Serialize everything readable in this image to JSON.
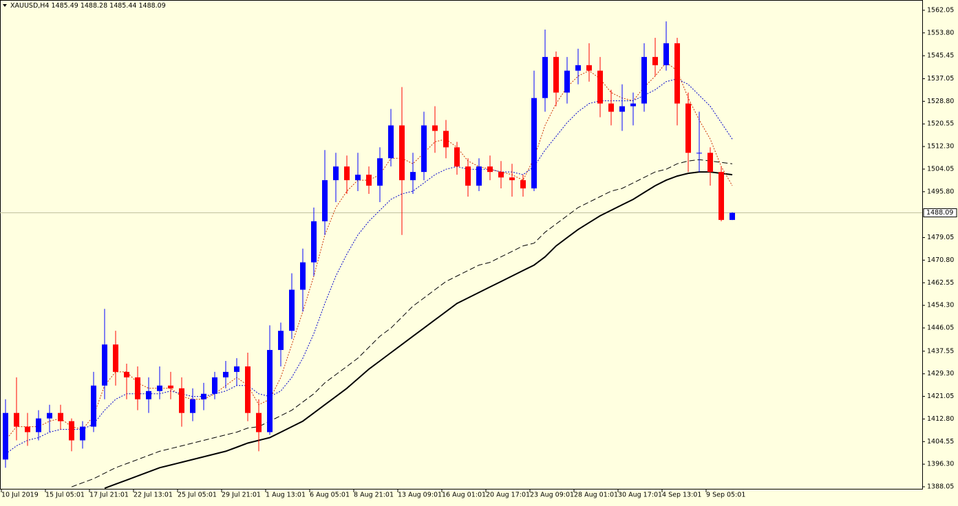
{
  "chart_data": {
    "type": "candlestick",
    "symbol": "XAUUSD,H4",
    "categories": [
      "10 Jul 2019",
      null,
      null,
      null,
      "15 Jul 05:01",
      null,
      null,
      null,
      "17 Jul 21:01",
      null,
      null,
      null,
      "22 Jul 13:01",
      null,
      null,
      null,
      "25 Jul 05:01",
      null,
      null,
      null,
      "29 Jul 21:01",
      null,
      null,
      null,
      "1 Aug 13:01",
      null,
      null,
      null,
      "6 Aug 05:01",
      null,
      null,
      null,
      "8 Aug 21:01",
      null,
      null,
      null,
      "13 Aug 09:01",
      null,
      null,
      null,
      "16 Aug 01:01",
      null,
      null,
      null,
      "20 Aug 17:01",
      null,
      null,
      null,
      "23 Aug 09:01",
      null,
      null,
      null,
      "28 Aug 01:01",
      null,
      null,
      null,
      "30 Aug 17:01",
      null,
      null,
      null,
      "4 Sep 13:01",
      null,
      null,
      null,
      "9 Sep 05:01",
      null,
      null
    ],
    "open": [
      1398,
      1415,
      1410,
      1408,
      1413,
      1415,
      1412,
      1405,
      1410,
      1425,
      1440,
      1430,
      1428,
      1420,
      1423,
      1425,
      1424,
      1415,
      1420,
      1422,
      1428,
      1430,
      1432,
      1415,
      1408,
      1438,
      1445,
      1460,
      1470,
      1485,
      1500,
      1505,
      1500,
      1502,
      1498,
      1508,
      1520,
      1500,
      1503,
      1520,
      1518,
      1512,
      1505,
      1498,
      1505,
      1503,
      1501,
      1500,
      1497,
      1530,
      1545,
      1532,
      1540,
      1542,
      1540,
      1528,
      1525,
      1527,
      1528,
      1545,
      1542,
      1550,
      1528,
      1510,
      1510,
      1503,
      1485.49
    ],
    "high": [
      1420,
      1428,
      1415,
      1416,
      1418,
      1418,
      1413,
      1412,
      1430,
      1453,
      1445,
      1433,
      1432,
      1428,
      1432,
      1430,
      1428,
      1424,
      1426,
      1430,
      1434,
      1435,
      1437,
      1420,
      1447,
      1448,
      1466,
      1475,
      1490,
      1511,
      1510,
      1509,
      1510,
      1505,
      1512,
      1526,
      1534,
      1510,
      1525,
      1527,
      1522,
      1514,
      1508,
      1508,
      1509,
      1507,
      1506,
      1502,
      1540,
      1555,
      1547,
      1545,
      1548,
      1550,
      1545,
      1533,
      1535,
      1532,
      1550,
      1552,
      1558,
      1552,
      1532,
      1525,
      1512,
      1505,
      1488.28
    ],
    "low": [
      1395,
      1405,
      1403,
      1405,
      1408,
      1409,
      1401,
      1402,
      1408,
      1420,
      1425,
      1420,
      1416,
      1415,
      1420,
      1420,
      1410,
      1412,
      1416,
      1420,
      1424,
      1425,
      1412,
      1401,
      1407,
      1432,
      1442,
      1452,
      1465,
      1480,
      1492,
      1495,
      1496,
      1495,
      1492,
      1505,
      1480,
      1495,
      1500,
      1510,
      1508,
      1502,
      1494,
      1496,
      1500,
      1497,
      1494,
      1494,
      1496,
      1525,
      1527,
      1528,
      1535,
      1536,
      1523,
      1520,
      1518,
      1520,
      1525,
      1538,
      1540,
      1520,
      1503,
      1503,
      1498,
      1485,
      1485.44
    ],
    "close": [
      1415,
      1410,
      1408,
      1413,
      1415,
      1412,
      1405,
      1410,
      1425,
      1440,
      1430,
      1428,
      1420,
      1423,
      1425,
      1424,
      1415,
      1420,
      1422,
      1428,
      1430,
      1432,
      1415,
      1408,
      1438,
      1445,
      1460,
      1470,
      1485,
      1500,
      1505,
      1500,
      1502,
      1498,
      1508,
      1520,
      1500,
      1503,
      1520,
      1518,
      1512,
      1505,
      1498,
      1505,
      1503,
      1501,
      1500,
      1497,
      1530,
      1545,
      1532,
      1540,
      1542,
      1540,
      1528,
      1525,
      1527,
      1528,
      1545,
      1542,
      1550,
      1528,
      1510,
      1510,
      1503,
      1485.49,
      1488.09
    ],
    "up_color": "#0000ff",
    "down_color": "#ff0000",
    "series": [
      {
        "color": "#000000",
        "style": "solid",
        "width": 2,
        "values": [
          null,
          null,
          null,
          null,
          null,
          null,
          null,
          null,
          null,
          1387.5,
          1389,
          1390.5,
          1392,
          1393.5,
          1395,
          1396,
          1397,
          1398,
          1399,
          1400,
          1401,
          1402.5,
          1404,
          1405,
          1406,
          1408,
          1410,
          1412,
          1415,
          1418,
          1421,
          1424,
          1427.5,
          1431,
          1434,
          1437,
          1440,
          1443,
          1446,
          1449,
          1452,
          1455,
          1457,
          1459,
          1461,
          1463,
          1465,
          1467,
          1469,
          1472,
          1476,
          1479,
          1482,
          1484.5,
          1487,
          1489,
          1491,
          1493,
          1495.5,
          1498,
          1500,
          1501.5,
          1502.5,
          1503,
          1503,
          1502.5,
          1502
        ]
      },
      {
        "color": "#000000",
        "style": "dashed",
        "width": 1,
        "values": [
          null,
          null,
          null,
          null,
          null,
          null,
          1388,
          1389.5,
          1391,
          1393,
          1395,
          1396.5,
          1398,
          1399.5,
          1401,
          1402,
          1403,
          1404,
          1405,
          1406,
          1407,
          1408,
          1409.5,
          1410,
          1412,
          1414,
          1416,
          1419,
          1422,
          1426,
          1429,
          1432,
          1435,
          1439,
          1443,
          1446,
          1450,
          1454,
          1457,
          1460,
          1463,
          1465,
          1467,
          1469,
          1470,
          1472,
          1474,
          1476,
          1477,
          1481,
          1484,
          1487,
          1490,
          1492,
          1494,
          1496,
          1497,
          1499,
          1501,
          1503,
          1504,
          1506,
          1507,
          1507.5,
          1507,
          1506.5,
          1506
        ]
      },
      {
        "color": "#cc3300",
        "style": "dotted",
        "width": 1,
        "values": [
          1405,
          1410,
          1410,
          1410,
          1412,
          1413,
          1410,
          1409,
          1414,
          1425,
          1430,
          1430,
          1426,
          1424,
          1424,
          1424,
          1421,
          1420,
          1420,
          1422,
          1425,
          1428,
          1425,
          1418,
          1420,
          1428,
          1440,
          1452,
          1465,
          1480,
          1490,
          1496,
          1500,
          1500,
          1502,
          1508,
          1508,
          1506,
          1510,
          1514,
          1515,
          1512,
          1507,
          1505,
          1504,
          1503,
          1502,
          1500,
          1508,
          1520,
          1528,
          1534,
          1538,
          1540,
          1537,
          1532,
          1530,
          1529,
          1534,
          1538,
          1543,
          1540,
          1530,
          1522,
          1515,
          1505,
          1498
        ]
      },
      {
        "color": "#0000cc",
        "style": "dotted",
        "width": 1,
        "values": [
          1400,
          1403,
          1405,
          1406,
          1408,
          1409,
          1409,
          1409,
          1411,
          1416,
          1420,
          1422,
          1422,
          1422,
          1422,
          1423,
          1422,
          1421,
          1421,
          1422,
          1423,
          1425,
          1425,
          1422,
          1421,
          1423,
          1428,
          1435,
          1444,
          1455,
          1465,
          1473,
          1480,
          1485,
          1489,
          1493,
          1495,
          1496,
          1499,
          1502,
          1504,
          1505,
          1504,
          1504,
          1504,
          1503,
          1503,
          1502,
          1505,
          1511,
          1516,
          1521,
          1525,
          1528,
          1529,
          1529,
          1529,
          1529,
          1531,
          1533,
          1536,
          1537,
          1535,
          1531,
          1527,
          1521,
          1515
        ]
      }
    ],
    "ylim": [
      1387.05,
      1565.8
    ],
    "yticks": [
      1562.05,
      {
        "value": 1553.8,
        "label": "1553.80"
      },
      1545.45,
      1537.05,
      {
        "value": 1528.8,
        "label": "1528.80"
      },
      1520.55,
      {
        "value": 1512.3,
        "label": "1512.30"
      },
      1504.05,
      {
        "value": 1495.8,
        "label": "1495.80"
      },
      1479.05,
      {
        "value": 1470.8,
        "label": "1470.80"
      },
      1462.55,
      {
        "value": 1454.3,
        "label": "1454.30"
      },
      1446.05,
      1437.55,
      {
        "value": 1429.3,
        "label": "1429.30"
      },
      1421.05,
      {
        "value": 1412.8,
        "label": "1412.80"
      },
      1404.55,
      {
        "value": 1396.3,
        "label": "1396.30"
      },
      1388.05
    ]
  }
}
